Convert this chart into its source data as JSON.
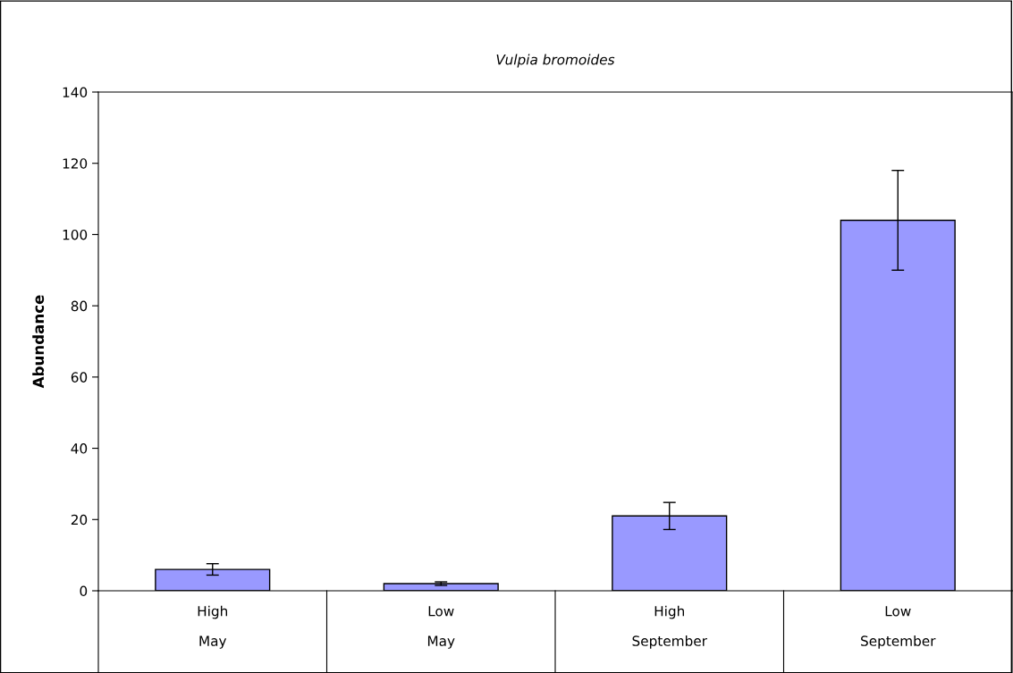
{
  "chart_data": {
    "type": "bar",
    "title": "Vulpia bromoides",
    "ylabel": "Abundance",
    "categories": [
      "High\nMay",
      "Low\nMay",
      "High\nSeptember",
      "Low\nSeptember"
    ],
    "values": [
      6,
      2,
      21,
      104
    ],
    "errors": [
      1.6,
      0.5,
      3.8,
      14
    ],
    "color": "#9999ff",
    "ylim": [
      0,
      140
    ],
    "yticks": [
      0,
      20,
      40,
      60,
      80,
      100,
      120,
      140
    ],
    "grid": false,
    "legend": false
  }
}
